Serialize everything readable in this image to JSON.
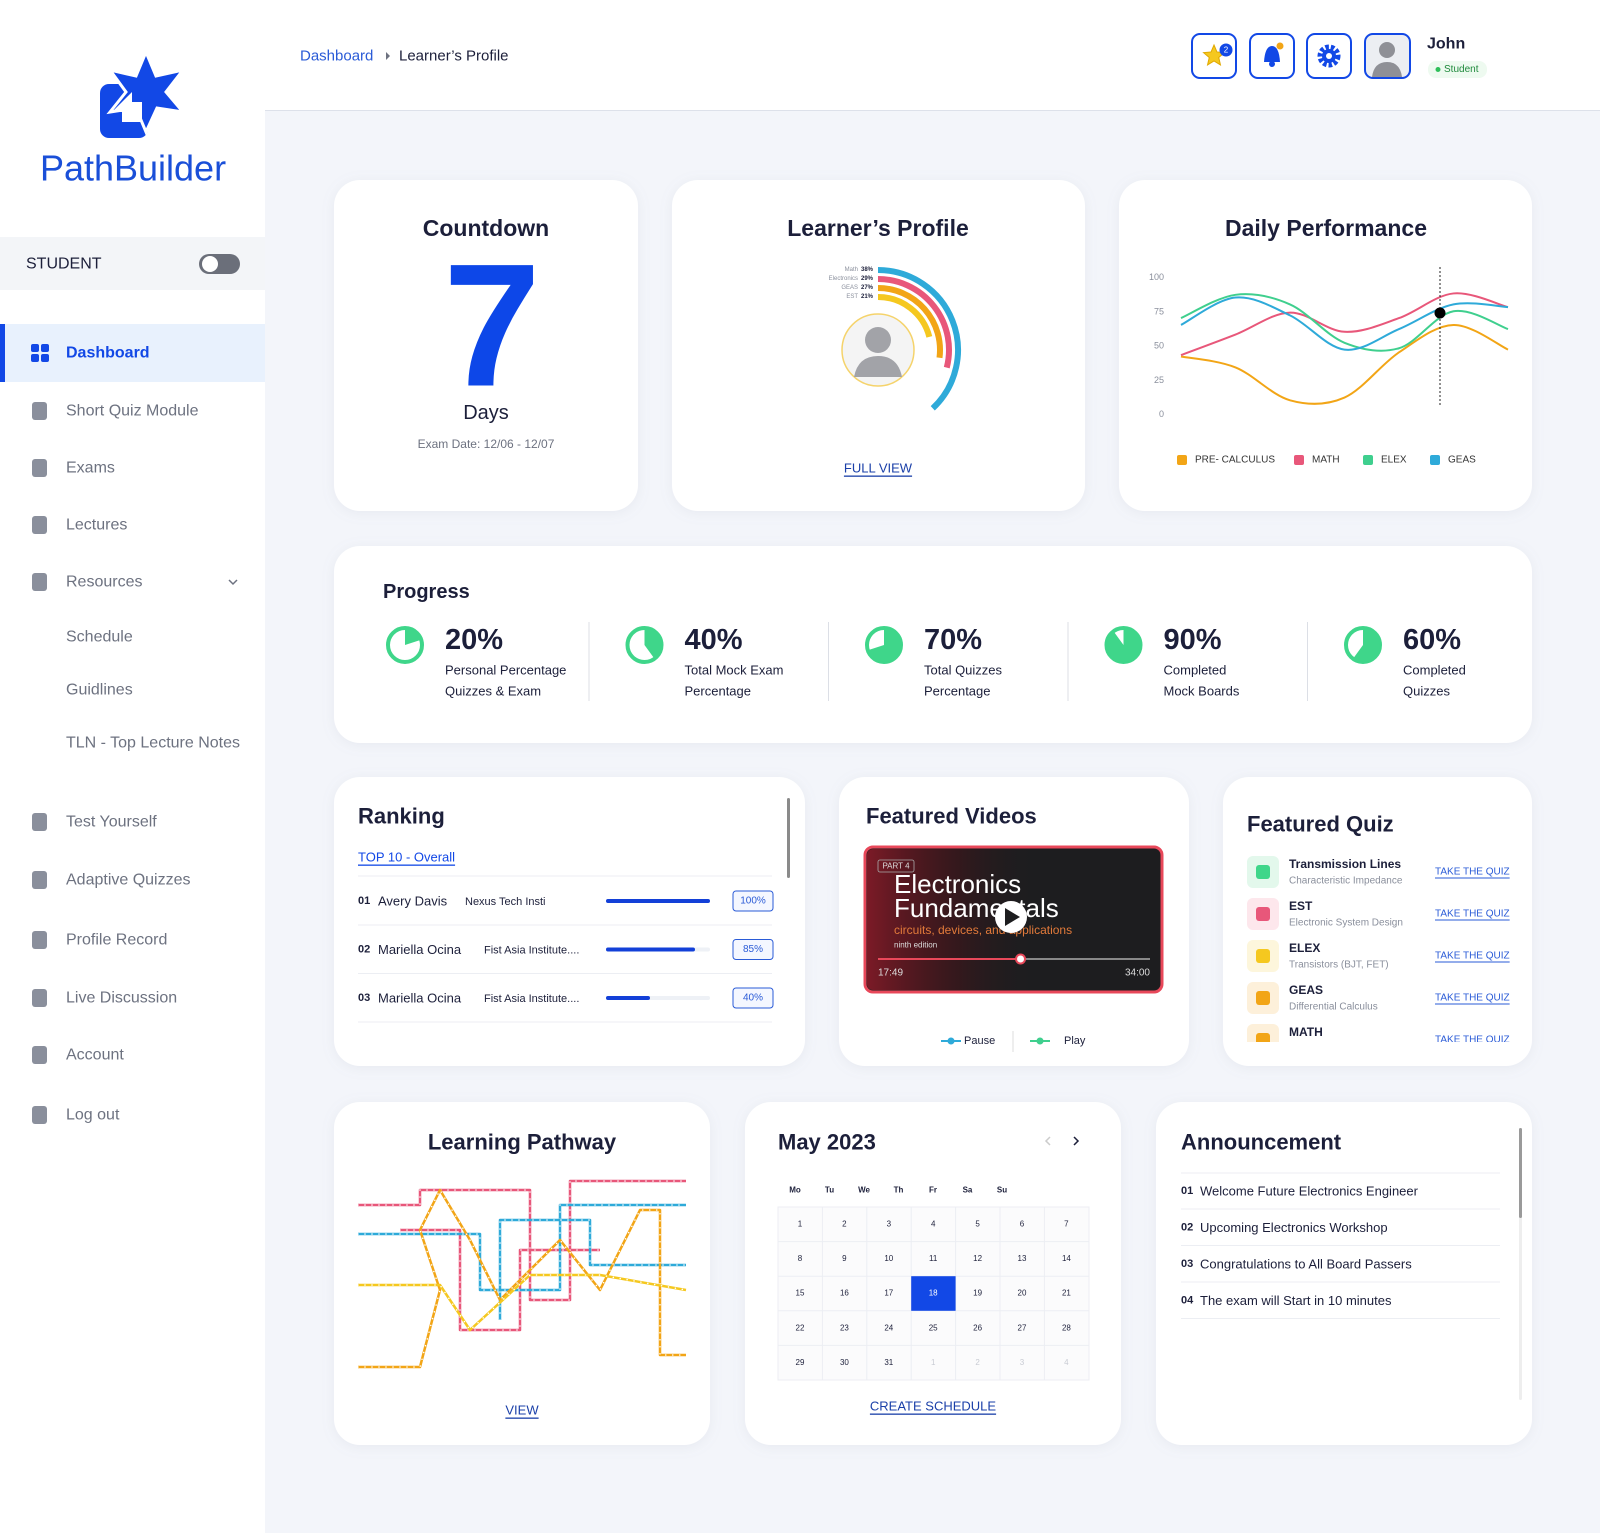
{
  "brand": "PathBuilder",
  "sidebar": {
    "role": "STUDENT",
    "menu": [
      {
        "label": "Dashboard"
      },
      {
        "label": "Short Quiz Module"
      },
      {
        "label": "Exams"
      },
      {
        "label": "Lectures"
      },
      {
        "label": "Resources",
        "children": [
          "Schedule",
          "Guidlines",
          "TLN - Top Lecture Notes"
        ]
      },
      {
        "label": "Test Yourself"
      },
      {
        "label": "Adaptive Quizzes"
      },
      {
        "label": "Profile Record"
      },
      {
        "label": "Live Discussion"
      },
      {
        "label": "Account"
      },
      {
        "label": "Log out"
      }
    ]
  },
  "header": {
    "breadcrumb": [
      "Dashboard",
      "Learner’s Profile"
    ],
    "notification_count": 2,
    "user": {
      "name": "John",
      "role": "Student"
    }
  },
  "countdown": {
    "title": "Countdown",
    "days": 7,
    "unit": "Days",
    "exam_date": "Exam Date: 12/06 - 12/07"
  },
  "learner_profile": {
    "title": "Learner’s Profile",
    "link": "FULL VIEW",
    "chart_data": {
      "type": "radial-bar",
      "categories": [
        "Math",
        "Electronics",
        "GEAS",
        "EST"
      ],
      "values": [
        38,
        29,
        27,
        21
      ],
      "value_labels": [
        "38%",
        "29%",
        "27%",
        "21%"
      ],
      "colors": [
        "#2eaad9",
        "#e8577a",
        "#f2a516",
        "#f5c81f"
      ]
    }
  },
  "daily_performance": {
    "title": "Daily Performance",
    "chart_data": {
      "type": "line",
      "categories": [
        null,
        null,
        null,
        null,
        null,
        null,
        null
      ],
      "series": [
        {
          "name": "PRE- CALCULUS",
          "color": "#f2a516",
          "values": [
            42,
            34,
            10,
            12,
            45,
            65,
            47
          ]
        },
        {
          "name": "MATH",
          "color": "#e8577a",
          "values": [
            43,
            58,
            74,
            60,
            70,
            88,
            78
          ]
        },
        {
          "name": "ELEX",
          "color": "#3fcf8e",
          "values": [
            70,
            87,
            80,
            52,
            48,
            75,
            62
          ]
        },
        {
          "name": "GEAS",
          "color": "#2eaad9",
          "values": [
            65,
            85,
            72,
            47,
            62,
            80,
            78
          ]
        }
      ],
      "ylim": [
        0,
        100
      ],
      "yticks": [
        0,
        25,
        50,
        75,
        100
      ],
      "grid": false,
      "legend": "bottom"
    }
  },
  "progress": {
    "title": "Progress",
    "chart_data": {
      "type": "pie-progress",
      "color": "#3fd68a",
      "values": [
        20,
        40,
        70,
        90,
        60
      ],
      "value_labels": [
        "20%",
        "40%",
        "70%",
        "90%",
        "60%"
      ],
      "categories": [
        [
          "Personal Percentage",
          "Quizzes & Exam"
        ],
        [
          "Total Mock Exam",
          "Percentage"
        ],
        [
          "Total Quizzes",
          "Percentage"
        ],
        [
          "Completed",
          "Mock Boards"
        ],
        [
          "Completed",
          "Quizzes"
        ]
      ]
    }
  },
  "ranking": {
    "title": "Ranking",
    "filter": "TOP 10 - Overall",
    "rows": [
      {
        "rank": "01",
        "name": "Avery Davis",
        "institution": "Nexus Tech Insti",
        "score": 100,
        "score_label": "100%"
      },
      {
        "rank": "02",
        "name": "Mariella Ocina",
        "institution": "Fist Asia Institute....",
        "score": 85,
        "score_label": "85%"
      },
      {
        "rank": "03",
        "name": "Mariella Ocina",
        "institution": "Fist Asia Institute....",
        "score": 40,
        "score_label": "40%"
      }
    ]
  },
  "featured_videos": {
    "title": "Featured Videos",
    "video": {
      "part": "PART 4",
      "title": [
        "Electronics",
        "Fundamentals"
      ],
      "subtitle": "circuits, devices, and applications",
      "edition": "ninth edition",
      "elapsed": "17:49",
      "duration": "34:00"
    },
    "legend": [
      "Pause",
      "Play"
    ]
  },
  "featured_quiz": {
    "title": "Featured Quiz",
    "action": "TAKE THE QUIZ",
    "items": [
      {
        "name": "Transmission Lines",
        "topic": "Characteristic Impedance"
      },
      {
        "name": "EST",
        "topic": "Electronic System Design"
      },
      {
        "name": "ELEX",
        "topic": "Transistors (BJT, FET)"
      },
      {
        "name": "GEAS",
        "topic": "Differential Calculus"
      },
      {
        "name": "MATH"
      }
    ]
  },
  "learning_pathway": {
    "title": "Learning Pathway",
    "link": "VIEW"
  },
  "calendar": {
    "month": "May 2023",
    "weekdays": [
      "Mo",
      "Tu",
      "We",
      "Th",
      "Fr",
      "Sa",
      "Su"
    ],
    "days": [
      1,
      2,
      3,
      4,
      5,
      6,
      7,
      8,
      9,
      10,
      11,
      12,
      13,
      14,
      15,
      16,
      17,
      18,
      19,
      20,
      21,
      22,
      23,
      24,
      25,
      26,
      27,
      28,
      29,
      30,
      31
    ],
    "next_month_days": [
      1,
      2,
      3,
      4
    ],
    "selected": 18,
    "link": "CREATE SCHEDULE"
  },
  "announcement": {
    "title": "Announcement",
    "items": [
      {
        "number": "01",
        "text": "Welcome Future Electronics Engineer"
      },
      {
        "number": "02",
        "text": "Upcoming Electronics Workshop"
      },
      {
        "number": "03",
        "text": "Congratulations to All Board Passers"
      },
      {
        "number": "04",
        "text": "The exam will Start in 10 minutes"
      }
    ]
  }
}
